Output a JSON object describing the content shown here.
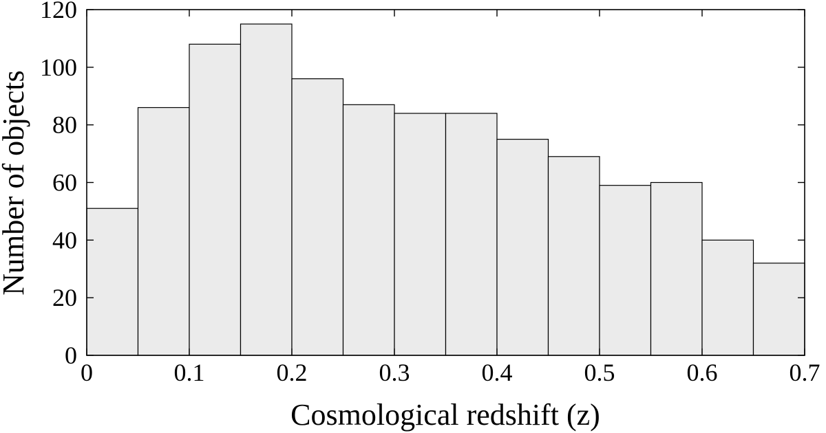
{
  "chart_data": {
    "type": "bar",
    "title": "",
    "xlabel": "Cosmological redshift (z)",
    "ylabel": "Number of objects",
    "bin_edges": [
      0,
      0.05,
      0.1,
      0.15,
      0.2,
      0.25,
      0.3,
      0.35,
      0.4,
      0.45,
      0.5,
      0.55,
      0.6,
      0.65,
      0.7
    ],
    "values": [
      51,
      86,
      108,
      115,
      96,
      87,
      84,
      84,
      75,
      69,
      59,
      60,
      40,
      32
    ],
    "xlim": [
      0,
      0.7
    ],
    "ylim": [
      0,
      120
    ],
    "xticks": [
      "0",
      "0.1",
      "0.2",
      "0.3",
      "0.4",
      "0.5",
      "0.6",
      "0.7"
    ],
    "yticks": [
      "0",
      "20",
      "40",
      "60",
      "80",
      "100",
      "120"
    ],
    "grid": false,
    "bar_fill": "#ebebeb",
    "bar_stroke": "#000000"
  }
}
